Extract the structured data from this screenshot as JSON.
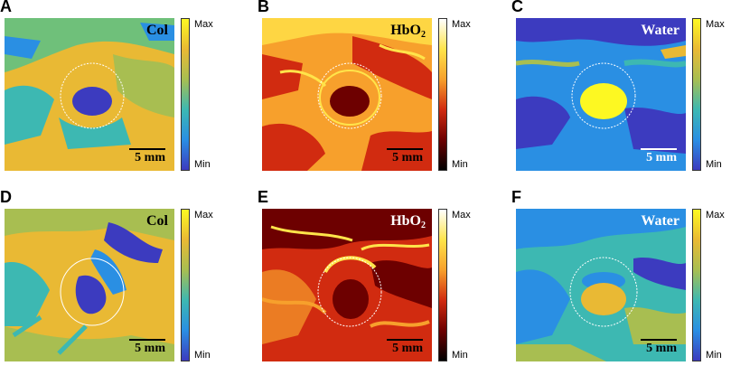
{
  "panels": [
    {
      "letter": "A",
      "label": "Col",
      "label_sub": "",
      "scale_text": "5 mm",
      "cbar_max": "Max",
      "cbar_min": "Min",
      "map": "parula",
      "label_color": "#000000",
      "scale_color": "#000000"
    },
    {
      "letter": "B",
      "label": "HbO",
      "label_sub": "2",
      "scale_text": "5 mm",
      "cbar_max": "Max",
      "cbar_min": "Min",
      "map": "hot",
      "label_color": "#000000",
      "scale_color": "#000000"
    },
    {
      "letter": "C",
      "label": "Water",
      "label_sub": "",
      "scale_text": "5 mm",
      "cbar_max": "Max",
      "cbar_min": "Min",
      "map": "parula",
      "label_color": "#ffffff",
      "scale_color": "#ffffff"
    },
    {
      "letter": "D",
      "label": "Col",
      "label_sub": "",
      "scale_text": "5 mm",
      "cbar_max": "Max",
      "cbar_min": "Min",
      "map": "parula",
      "label_color": "#000000",
      "scale_color": "#000000"
    },
    {
      "letter": "E",
      "label": "HbO",
      "label_sub": "2",
      "scale_text": "5 mm",
      "cbar_max": "Max",
      "cbar_min": "Min",
      "map": "hot",
      "label_color": "#ffffff",
      "scale_color": "#000000"
    },
    {
      "letter": "F",
      "label": "Water",
      "label_sub": "",
      "scale_text": "5 mm",
      "cbar_max": "Max",
      "cbar_min": "Min",
      "map": "parula",
      "label_color": "#ffffff",
      "scale_color": "#000000"
    }
  ],
  "colormaps": {
    "parula": [
      "#fdf822",
      "#e9b934",
      "#a8be51",
      "#3db8b2",
      "#2a8fe3",
      "#3c3bbf"
    ],
    "hot": [
      "#ffffff",
      "#ffe44a",
      "#f7a02c",
      "#d12b10",
      "#6d0000",
      "#000000"
    ]
  }
}
